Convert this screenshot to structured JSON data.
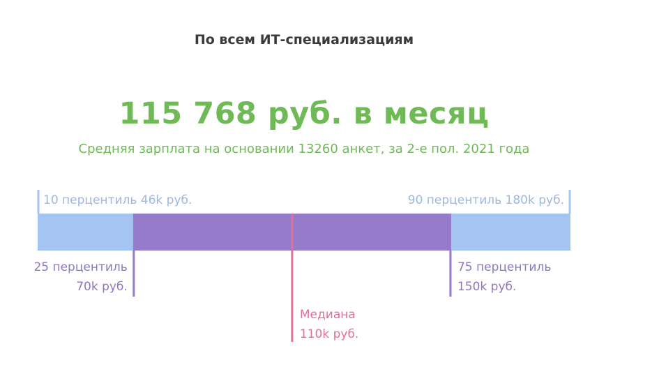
{
  "header": {
    "title": "По всем ИТ-специализациям",
    "headline": "115 768 руб. в месяц",
    "subtitle": "Средняя зарплата на основании 13260 анкет, за 2-е пол. 2021 года"
  },
  "colors": {
    "outer_band": "#a4c4f2",
    "inner_band": "#967bcb",
    "median": "#e0709e",
    "headline": "#6fba56",
    "outer_label": "#9db8dd",
    "inner_label": "#8f78bd"
  },
  "chart_data": {
    "type": "boxplot",
    "unit": "k руб.",
    "percentiles": [
      {
        "key": "p10",
        "value": 46,
        "label_line1": "10 перцентиль 46k руб.",
        "label_line2": ""
      },
      {
        "key": "p25",
        "value": 70,
        "label_line1": "25 перцентиль",
        "label_line2": "70k руб."
      },
      {
        "key": "median",
        "value": 110,
        "label_line1": "Медиана",
        "label_line2": "110k руб."
      },
      {
        "key": "p75",
        "value": 150,
        "label_line1": "75 перцентиль",
        "label_line2": "150k руб."
      },
      {
        "key": "p90",
        "value": 180,
        "label_line1": "90 перцентиль 180k руб.",
        "label_line2": ""
      }
    ]
  }
}
